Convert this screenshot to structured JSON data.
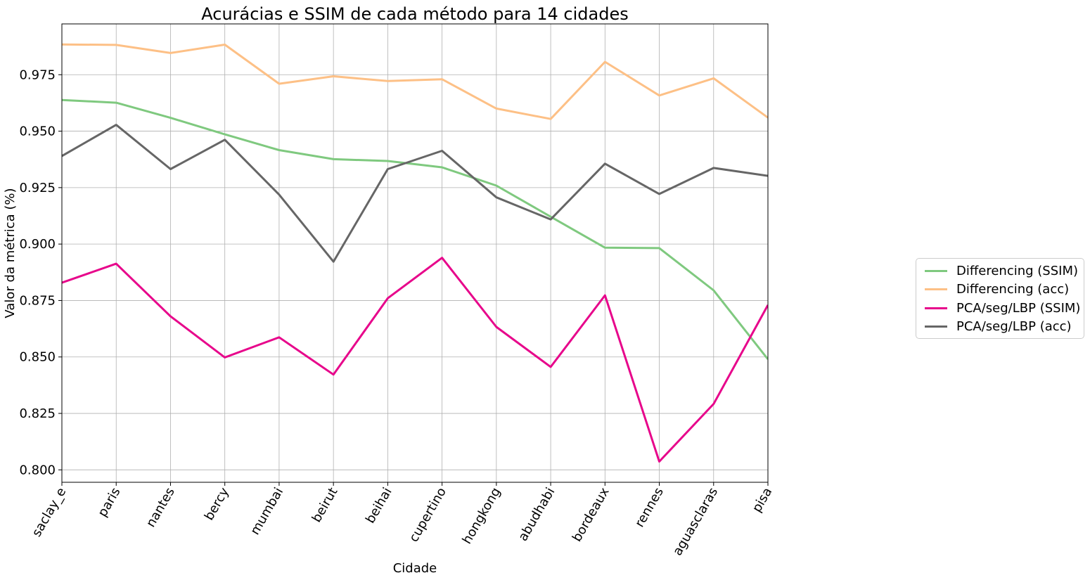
{
  "chart_data": {
    "type": "line",
    "title": "Acurácias e SSIM de cada método para 14 cidades",
    "xlabel": "Cidade",
    "ylabel": "Valor da métrica (%)",
    "categories": [
      "saclay_e",
      "paris",
      "nantes",
      "bercy",
      "mumbai",
      "beirut",
      "beihai",
      "cupertino",
      "hongkong",
      "abudhabi",
      "bordeaux",
      "rennes",
      "aguasclaras",
      "pisa"
    ],
    "ylim": [
      0.7945,
      0.9975
    ],
    "yticks": [
      0.8,
      0.825,
      0.85,
      0.875,
      0.9,
      0.925,
      0.95,
      0.975
    ],
    "ytick_labels": [
      "0.800",
      "0.825",
      "0.850",
      "0.875",
      "0.900",
      "0.925",
      "0.950",
      "0.975"
    ],
    "grid": true,
    "legend_position": "center-right outside",
    "series": [
      {
        "name": "Differencing (SSIM)",
        "color": "#7fc97f",
        "values": [
          0.9638,
          0.9626,
          0.9559,
          0.9486,
          0.9416,
          0.9376,
          0.9368,
          0.934,
          0.9259,
          0.9121,
          0.8984,
          0.8982,
          0.8795,
          0.849
        ]
      },
      {
        "name": "Differencing (acc)",
        "color": "#fdc086",
        "values": [
          0.9884,
          0.9882,
          0.9846,
          0.9883,
          0.971,
          0.9743,
          0.9722,
          0.973,
          0.96,
          0.9554,
          0.9807,
          0.9658,
          0.9734,
          0.956
        ]
      },
      {
        "name": "PCA/seg/LBP (SSIM)",
        "color": "#e7068b",
        "values": [
          0.8829,
          0.8913,
          0.868,
          0.8498,
          0.8587,
          0.8422,
          0.876,
          0.8939,
          0.8633,
          0.8456,
          0.8773,
          0.8037,
          0.8292,
          0.873
        ]
      },
      {
        "name": "PCA/seg/LBP (acc)",
        "color": "#666666",
        "values": [
          0.939,
          0.9528,
          0.9332,
          0.9462,
          0.9219,
          0.8922,
          0.9332,
          0.9413,
          0.9207,
          0.9109,
          0.9356,
          0.9222,
          0.9337,
          0.9302
        ]
      }
    ]
  }
}
